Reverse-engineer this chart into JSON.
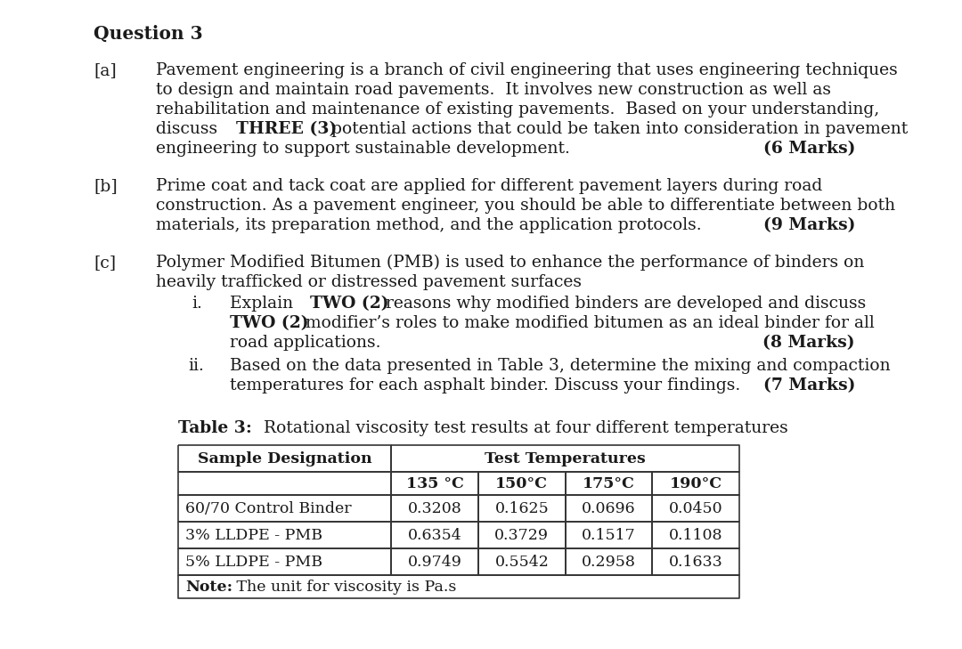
{
  "bg_color": "#ffffff",
  "text_color": "#1a1a1a",
  "title": "Question 3",
  "section_a_label": "[a]",
  "section_a_marks": "(6 Marks)",
  "section_b_label": "[b]",
  "section_b_marks": "(9 Marks)",
  "section_c_label": "[c]",
  "section_ci_label": "i.",
  "section_ci_marks": "(8 Marks)",
  "section_cii_label": "ii.",
  "section_cii_marks": "(7 Marks)",
  "table_caption_bold": "Table 3:",
  "table_caption_rest": " Rotational viscosity test results at four different temperatures",
  "table_header1": "Sample Designation",
  "table_header2": "Test Temperatures",
  "table_col_headers": [
    "135 °C",
    "150°C",
    "175°C",
    "190°C"
  ],
  "table_rows": [
    [
      "60/70 Control Binder",
      "0.3208",
      "0.1625",
      "0.0696",
      "0.0450"
    ],
    [
      "3% LLDPE - PMB",
      "0.6354",
      "0.3729",
      "0.1517",
      "0.1108"
    ],
    [
      "5% LLDPE - PMB",
      "0.9749",
      "0.5542",
      "0.2958",
      "0.1633"
    ]
  ],
  "table_note_bold": "Note:",
  "table_note_rest": " The unit for viscosity is Pa.s"
}
